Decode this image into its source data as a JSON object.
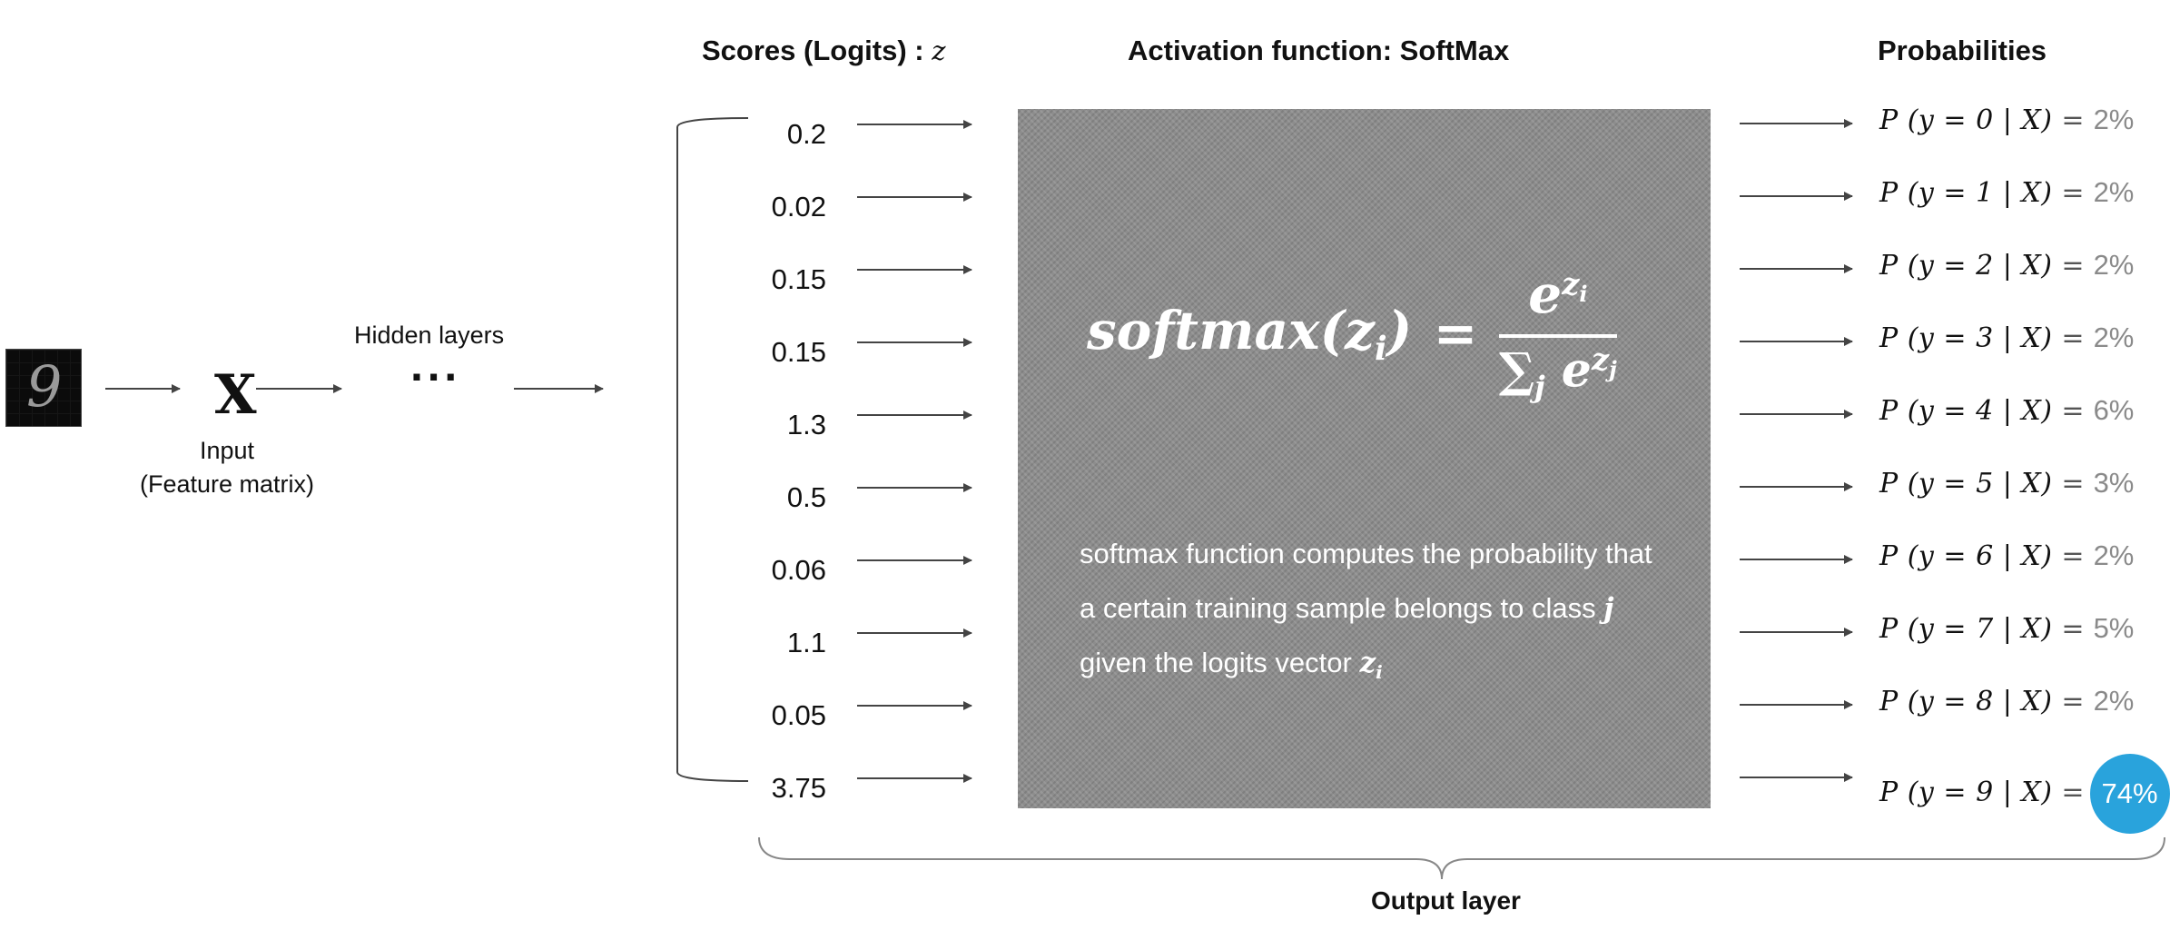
{
  "headers": {
    "scores_text": "Scores (Logits) : ",
    "scores_var": "z",
    "activation": "Activation function:  SoftMax",
    "probabilities": "Probabilities"
  },
  "input": {
    "image_digit": "9",
    "x_symbol": "X",
    "label_line1": "Input",
    "label_line2": "(Feature matrix)"
  },
  "hidden": {
    "label": "Hidden layers",
    "ellipsis": "···"
  },
  "logits": [
    "0.2",
    "0.02",
    "0.15",
    "0.15",
    "1.3",
    "0.5",
    "0.06",
    "1.1",
    "0.05",
    "3.75"
  ],
  "softmax": {
    "formula_lhs": "softmax(z",
    "formula_lhs_sub": "i",
    "formula_lhs_close": ")",
    "formula_eq": "=",
    "numerator_base": "e",
    "numerator_sup": "z",
    "numerator_sub": "i",
    "denominator_sum": "∑",
    "denominator_sum_sub": "j",
    "denominator_base": "e",
    "denominator_sup": "z",
    "denominator_sub": "j",
    "desc_part1": "softmax function computes the probability that a certain training sample belongs to class ",
    "desc_var_j": "j",
    "desc_part2": " given the logits vector ",
    "desc_var_z": "z",
    "desc_var_z_sub": "i"
  },
  "probabilities": [
    {
      "expr": "P (y = 0 | X)",
      "eq": "=",
      "value": "2%",
      "highlight": false
    },
    {
      "expr": "P (y = 1 | X)",
      "eq": "=",
      "value": "2%",
      "highlight": false
    },
    {
      "expr": "P (y = 2 | X)",
      "eq": "=",
      "value": "2%",
      "highlight": false
    },
    {
      "expr": "P (y = 3 | X)",
      "eq": "=",
      "value": "2%",
      "highlight": false
    },
    {
      "expr": "P (y = 4 | X)",
      "eq": "=",
      "value": "6%",
      "highlight": false
    },
    {
      "expr": "P (y = 5 | X)",
      "eq": "=",
      "value": "3%",
      "highlight": false
    },
    {
      "expr": "P (y = 6 | X)",
      "eq": "=",
      "value": "2%",
      "highlight": false
    },
    {
      "expr": "P (y = 7 | X)",
      "eq": "=",
      "value": "5%",
      "highlight": false
    },
    {
      "expr": "P (y = 8 | X)",
      "eq": "=",
      "value": "2%",
      "highlight": false
    },
    {
      "expr": "P (y = 9 | X)",
      "eq": "=",
      "value": "74%",
      "highlight": true
    }
  ],
  "output_layer_label": "Output  layer",
  "colors": {
    "highlight": "#29a3dc",
    "box": "#8d8d8d",
    "arrow": "#444444"
  }
}
